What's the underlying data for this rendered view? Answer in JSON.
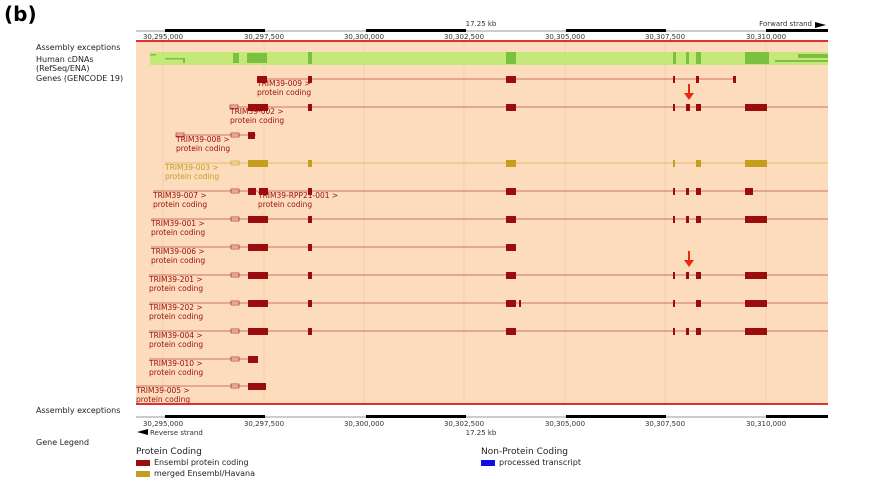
{
  "panel_label": "(b)",
  "track_labels": {
    "assembly_top": "Assembly exceptions",
    "cdna_line1": "Human cDNAs",
    "cdna_line2": "(RefSeq/ENA)",
    "genes": "Genes (GENCODE 19)",
    "assembly_bottom": "Assembly exceptions",
    "gene_legend": "Gene Legend"
  },
  "ruler": {
    "scale_label": "17.25 kb",
    "forward_strand": "Forward strand",
    "reverse_strand": "Reverse strand",
    "ticks": [
      "30,295,000",
      "30,297,500",
      "30,300,000",
      "30,302,500",
      "30,305,000",
      "30,307,500",
      "30,310,000"
    ]
  },
  "transcripts": [
    {
      "name": "TRIM39-009 >",
      "biotype": "protein coding",
      "color": "#9b0d0d"
    },
    {
      "name": "TRIM39-002 >",
      "biotype": "protein coding",
      "color": "#9b0d0d"
    },
    {
      "name": "TRIM39-008 >",
      "biotype": "protein coding",
      "color": "#9b0d0d"
    },
    {
      "name": "TRIM39-003 >",
      "biotype": "protein coding",
      "color": "#c69e1e"
    },
    {
      "name": "TRIM39-007 >",
      "biotype": "protein coding",
      "color": "#9b0d0d"
    },
    {
      "name": "TRIM39-RPP21-001 >",
      "biotype": "protein coding",
      "color": "#9b0d0d"
    },
    {
      "name": "TRIM39-001 >",
      "biotype": "protein coding",
      "color": "#9b0d0d"
    },
    {
      "name": "TRIM39-006 >",
      "biotype": "protein coding",
      "color": "#9b0d0d"
    },
    {
      "name": "TRIM39-201 >",
      "biotype": "protein coding",
      "color": "#9b0d0d"
    },
    {
      "name": "TRIM39-202 >",
      "biotype": "protein coding",
      "color": "#9b0d0d"
    },
    {
      "name": "TRIM39-004 >",
      "biotype": "protein coding",
      "color": "#9b0d0d"
    },
    {
      "name": "TRIM39-010 >",
      "biotype": "protein coding",
      "color": "#9b0d0d"
    },
    {
      "name": "TRIM39-005 >",
      "biotype": "protein coding",
      "color": "#9b0d0d"
    }
  ],
  "legend": {
    "protein_title": "Protein Coding",
    "ensembl_protein": "Ensembl protein coding",
    "merged": "merged Ensembl/Havana",
    "nonprotein_title": "Non-Protein Coding",
    "processed": "processed transcript"
  },
  "colors": {
    "track_background": "#fcdcbc",
    "exon_ensembl": "#9b0d0d",
    "exon_merged": "#c69e1e",
    "cdna": "#c5e87a",
    "cdna_dark": "#7cc040",
    "processed": "#1010e0",
    "exception_line": "#e03030",
    "arrow": "#e82a10"
  }
}
